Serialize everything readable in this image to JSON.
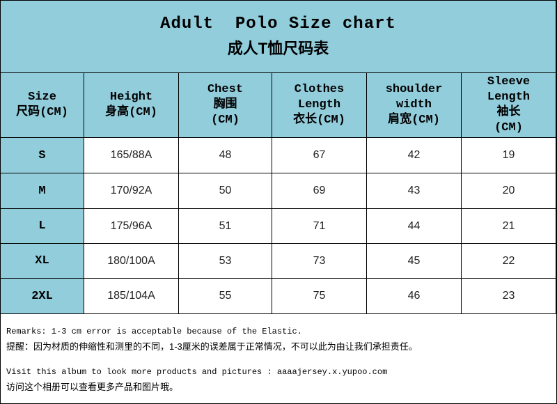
{
  "header": {
    "title": "Adult  Polo Size chart",
    "subtitle": "成人T恤尺码表"
  },
  "table": {
    "columns": [
      [
        "Size",
        "尺码(CM)"
      ],
      [
        "Height",
        "身高(CM)"
      ],
      [
        "Chest",
        "胸围",
        "(CM)"
      ],
      [
        "Clothes",
        "Length",
        "衣长(CM)"
      ],
      [
        "shoulder",
        "width",
        "肩宽(CM)"
      ],
      [
        "Sleeve",
        "Length",
        "袖长",
        "(CM)"
      ]
    ],
    "rows": [
      [
        "S",
        "165/88A",
        48,
        67,
        42,
        19
      ],
      [
        "M",
        "170/92A",
        50,
        69,
        43,
        20
      ],
      [
        "L",
        "175/96A",
        51,
        71,
        44,
        21
      ],
      [
        "XL",
        "180/100A",
        53,
        73,
        45,
        22
      ],
      [
        "2XL",
        "185/104A",
        55,
        75,
        46,
        23
      ]
    ]
  },
  "remarks": [
    "Remarks: 1-3 cm error is acceptable because of the Elastic.",
    "提醒：因为材质的伸缩性和测里的不同，1-3厘米的误差属于正常情况，不可以此为由让我们承担责任。",
    "Visit this album to look more products and pictures : aaaajersey.x.yupoo.com",
    "访问这个相册可以查看更多产品和图片哦。"
  ]
}
